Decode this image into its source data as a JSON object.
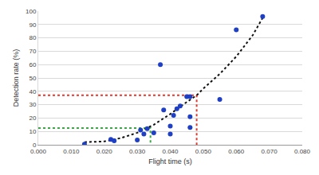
{
  "chart_data": {
    "type": "scatter",
    "x_label": "Flight time (s)",
    "y_label": "Detection rate (%)",
    "xlim": [
      0,
      0.08
    ],
    "xticks": [
      {
        "value": 0,
        "label": "0.000"
      },
      {
        "value": 0.01,
        "label": "0.010"
      },
      {
        "value": 0.02,
        "label": "0.020"
      },
      {
        "value": 0.03,
        "label": "0.030"
      },
      {
        "value": 0.04,
        "label": "0.040"
      },
      {
        "value": 0.05,
        "label": "0.050"
      },
      {
        "value": 0.06,
        "label": "0.060"
      },
      {
        "value": 0.07,
        "label": "0.070"
      },
      {
        "value": 0.08,
        "label": "0.080"
      }
    ],
    "ylim": [
      0,
      100
    ],
    "yticks": [
      0,
      10,
      20,
      30,
      40,
      50,
      60,
      70,
      80,
      90,
      100
    ],
    "grid": true,
    "series": [
      {
        "type": "line",
        "color": "#e03a2f",
        "line_style": "dotted",
        "x": [
          0,
          0.048,
          0.048
        ],
        "values": [
          37,
          37,
          0
        ]
      },
      {
        "type": "line",
        "color": "#3aa845",
        "line_style": "dotted",
        "x": [
          0,
          0.034,
          0.034
        ],
        "values": [
          12.5,
          12.5,
          0
        ]
      },
      {
        "type": "line",
        "color": "#111111",
        "line_style": "dotted",
        "x": [
          0.014,
          0.02,
          0.025,
          0.03,
          0.035,
          0.04,
          0.045,
          0.048,
          0.05,
          0.055,
          0.06,
          0.065,
          0.068
        ],
        "values": [
          2,
          2.5,
          5,
          9,
          15,
          23,
          32,
          37,
          42,
          53,
          66,
          82,
          95
        ]
      },
      {
        "type": "scatter",
        "color": "#1f3fc4",
        "marker": "circle",
        "x": [
          0.014,
          0.022,
          0.023,
          0.03,
          0.031,
          0.032,
          0.033,
          0.035,
          0.037,
          0.038,
          0.04,
          0.04,
          0.041,
          0.042,
          0.043,
          0.045,
          0.046,
          0.046,
          0.046,
          0.055,
          0.06,
          0.068
        ],
        "values": [
          0.5,
          4,
          3,
          3.5,
          11,
          8,
          12,
          9,
          60,
          26,
          14,
          8,
          22,
          27,
          29,
          36,
          36,
          21,
          13,
          34,
          86,
          96
        ]
      }
    ]
  }
}
